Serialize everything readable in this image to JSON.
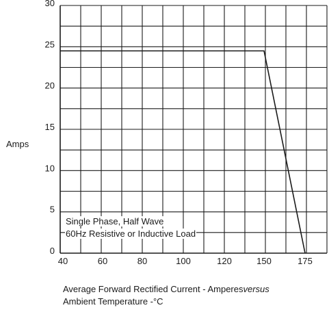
{
  "chart_data": {
    "type": "line",
    "title": "",
    "ylabel": "Amps",
    "xlabel_line1": "Average Forward Rectified Current  -  Amperes",
    "xlabel_versus": "versus",
    "xlabel_line2": "Ambient Temperature  -°C",
    "xlim": [
      40,
      175
    ],
    "ylim": [
      0,
      30
    ],
    "x_ticks": [
      40,
      60,
      80,
      100,
      120,
      150,
      175
    ],
    "y_ticks": [
      0,
      5,
      10,
      15,
      20,
      25,
      30
    ],
    "grid": true,
    "series": [
      {
        "x": [
          40,
          150,
          175
        ],
        "y": [
          24.5,
          24.5,
          0
        ]
      }
    ],
    "annotations": [
      "Single Phase, Half Wave",
      "60Hz Resistive or Inductive Load"
    ]
  },
  "colors": {
    "grid": "#1a1a1a",
    "series": "#1a1a1a",
    "background": "#ffffff"
  }
}
